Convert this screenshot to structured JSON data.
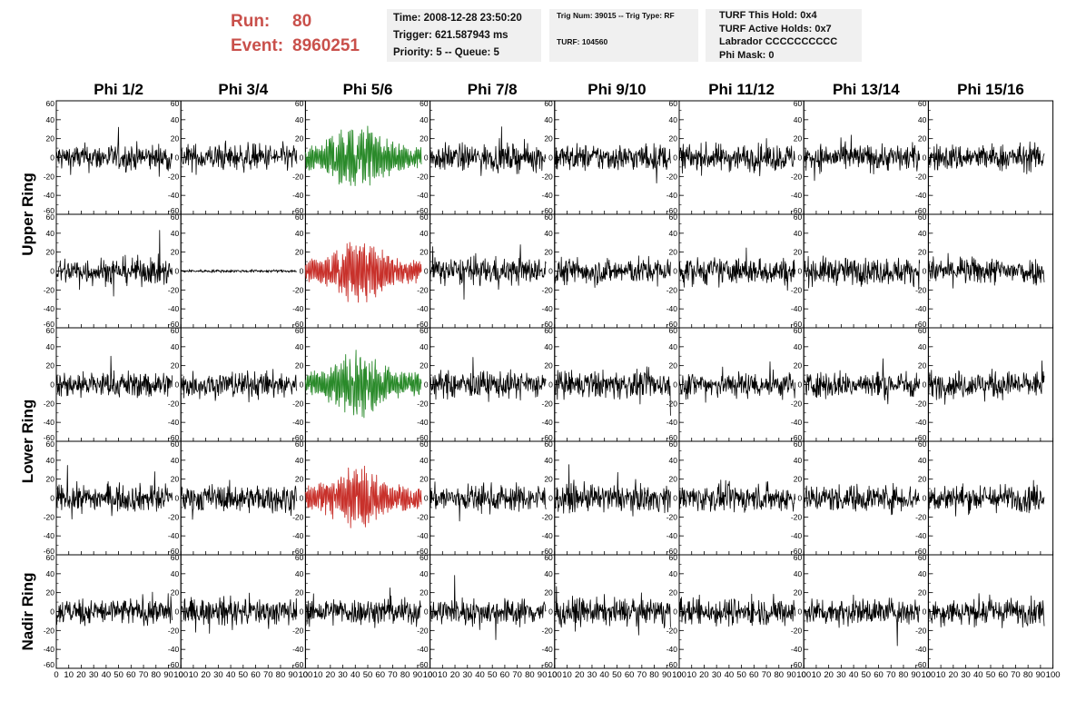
{
  "header": {
    "run_label": "Run:",
    "run_value": "80",
    "event_label": "Event:",
    "event_value": "8960251"
  },
  "info_box_1": {
    "time": "Time: 2008-12-28 23:50:20",
    "trigger": "Trigger: 621.587943 ms",
    "priority": "Priority: 5 -- Queue: 5"
  },
  "info_box_2": {
    "trig": "Trig Num: 39015 -- Trig Type: RF",
    "turf": "TURF: 104560"
  },
  "info_box_3": {
    "this_hold": "TURF This Hold: 0x4",
    "active_holds": "TURF Active Holds: 0x7",
    "labrador": "Labrador CCCCCCCCCC",
    "phi_mask": "Phi Mask: 0"
  },
  "chart_data": {
    "type": "line",
    "columns": [
      "Phi 1/2",
      "Phi 3/4",
      "Phi 5/6",
      "Phi 7/8",
      "Phi 9/10",
      "Phi 11/12",
      "Phi 13/14",
      "Phi 15/16"
    ],
    "rows": [
      {
        "name": "Upper Ring",
        "sub_rows": 2
      },
      {
        "name": "Lower Ring",
        "sub_rows": 2
      },
      {
        "name": "Nadir Ring",
        "sub_rows": 1
      }
    ],
    "ylim": [
      -60,
      60
    ],
    "yticks": [
      60,
      40,
      20,
      0,
      -20,
      -40,
      -60
    ],
    "xlim": [
      0,
      100
    ],
    "xticks": [
      0,
      10,
      20,
      30,
      40,
      50,
      60,
      70,
      80,
      90,
      100
    ],
    "samples_per_trace": 260,
    "trace_x_end": 93,
    "default_color": "#000000",
    "highlight_colors": {
      "green": "#2a8a2a",
      "red": "#c8312b"
    },
    "highlighted": [
      {
        "row": 0,
        "col": 2,
        "color": "green"
      },
      {
        "row": 1,
        "col": 2,
        "color": "red"
      },
      {
        "row": 2,
        "col": 2,
        "color": "green"
      },
      {
        "row": 3,
        "col": 2,
        "color": "red"
      }
    ],
    "quiet_trace": {
      "row": 1,
      "col": 1,
      "amplitude": 2
    }
  }
}
